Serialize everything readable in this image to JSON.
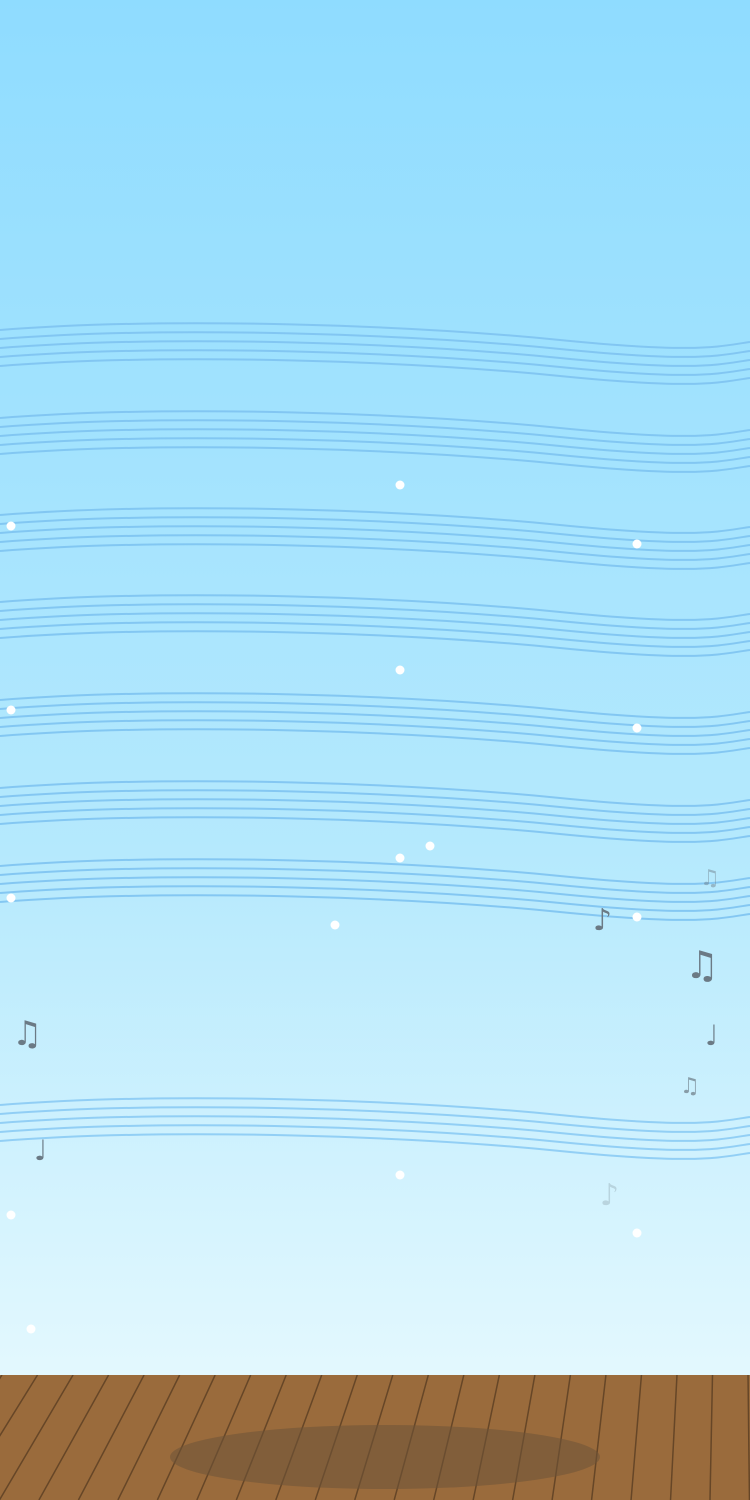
{
  "scene": {
    "sky_top_color": "#8fdcff",
    "sky_mid_color": "#b5e9fd",
    "sky_bottom_color": "#e3f8fe",
    "staff_line_color": "#7ec3f1",
    "dot_color": "#ffffff",
    "note_color": "#6b7a85",
    "floor_color": "#9a6b3c",
    "floor_line_color": "#5a3d22",
    "shadow_color": "#6e5338"
  },
  "notes": [
    {
      "glyph": "♫",
      "icon": "beamed-eighth-notes-icon"
    },
    {
      "glyph": "♪",
      "icon": "eighth-note-icon"
    },
    {
      "glyph": "♫",
      "icon": "beamed-eighth-notes-icon"
    },
    {
      "glyph": "♩",
      "icon": "quarter-note-icon"
    },
    {
      "glyph": "♫",
      "icon": "beamed-eighth-notes-icon"
    },
    {
      "glyph": "♩",
      "icon": "quarter-note-icon"
    },
    {
      "glyph": "♪",
      "icon": "eighth-note-icon"
    },
    {
      "glyph": "♫",
      "icon": "beamed-eighth-notes-icon"
    }
  ]
}
